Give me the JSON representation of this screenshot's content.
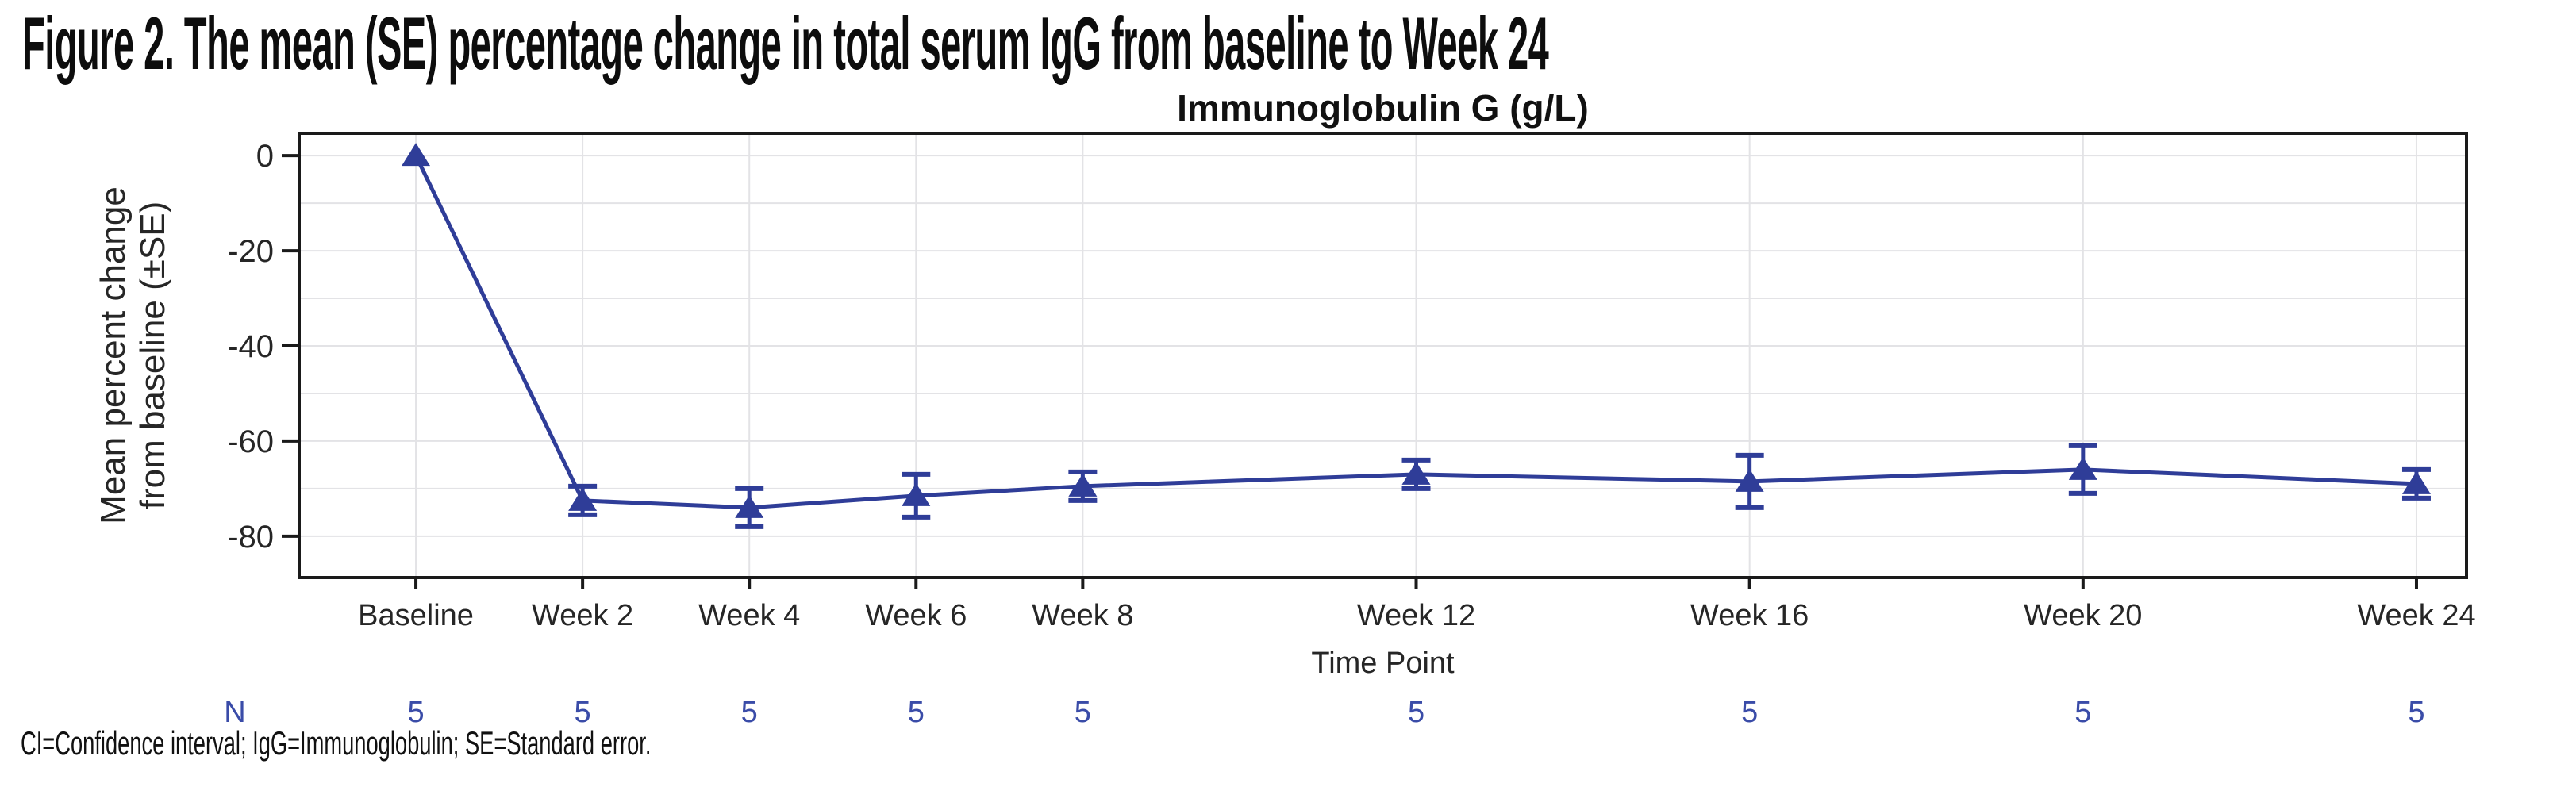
{
  "figure": {
    "title": "Figure 2. The mean (SE) percentage change in total serum IgG from baseline to Week 24",
    "footnote": "CI=Confidence interval; IgG=Immunoglobulin; SE=Standard error."
  },
  "chart_data": {
    "type": "line",
    "title": "Immunoglobulin G (g/L)",
    "xlabel": "Time Point",
    "ylabel_lines": [
      "Mean percent change",
      "from baseline (±SE)"
    ],
    "categories": [
      "Baseline",
      "Week 2",
      "Week 4",
      "Week 6",
      "Week 8",
      "Week 12",
      "Week 16",
      "Week 20",
      "Week 24"
    ],
    "x_weeks": [
      0,
      2,
      4,
      6,
      8,
      12,
      16,
      20,
      24
    ],
    "series": [
      {
        "name": "Total serum IgG mean percent change",
        "values": [
          0,
          -72.5,
          -74,
          -71.5,
          -69.5,
          -67,
          -68.5,
          -66,
          -69
        ],
        "se": [
          null,
          3,
          4,
          4.5,
          3,
          3,
          5.5,
          5,
          3
        ]
      }
    ],
    "n_row": {
      "label": "N",
      "values": [
        "5",
        "5",
        "5",
        "5",
        "5",
        "5",
        "5",
        "5",
        "5"
      ]
    },
    "yticks": [
      0,
      -20,
      -40,
      -60,
      -80
    ],
    "y_gridline_step": 10,
    "y_gridline_range": [
      0,
      -80
    ],
    "ylim": [
      -88.7,
      4.7
    ],
    "xlim_weeks": [
      -1.4,
      24.6
    ],
    "grid": "horizontal-minor-and-vertical-at-timepoints",
    "legend": "none",
    "marker": "filled-triangle-up",
    "colors": {
      "series": "#2F3D98",
      "n_text": "#3A4CA8",
      "grid": "#E3E3E6",
      "axis": "#1A1A1A",
      "text": "#262626"
    }
  }
}
